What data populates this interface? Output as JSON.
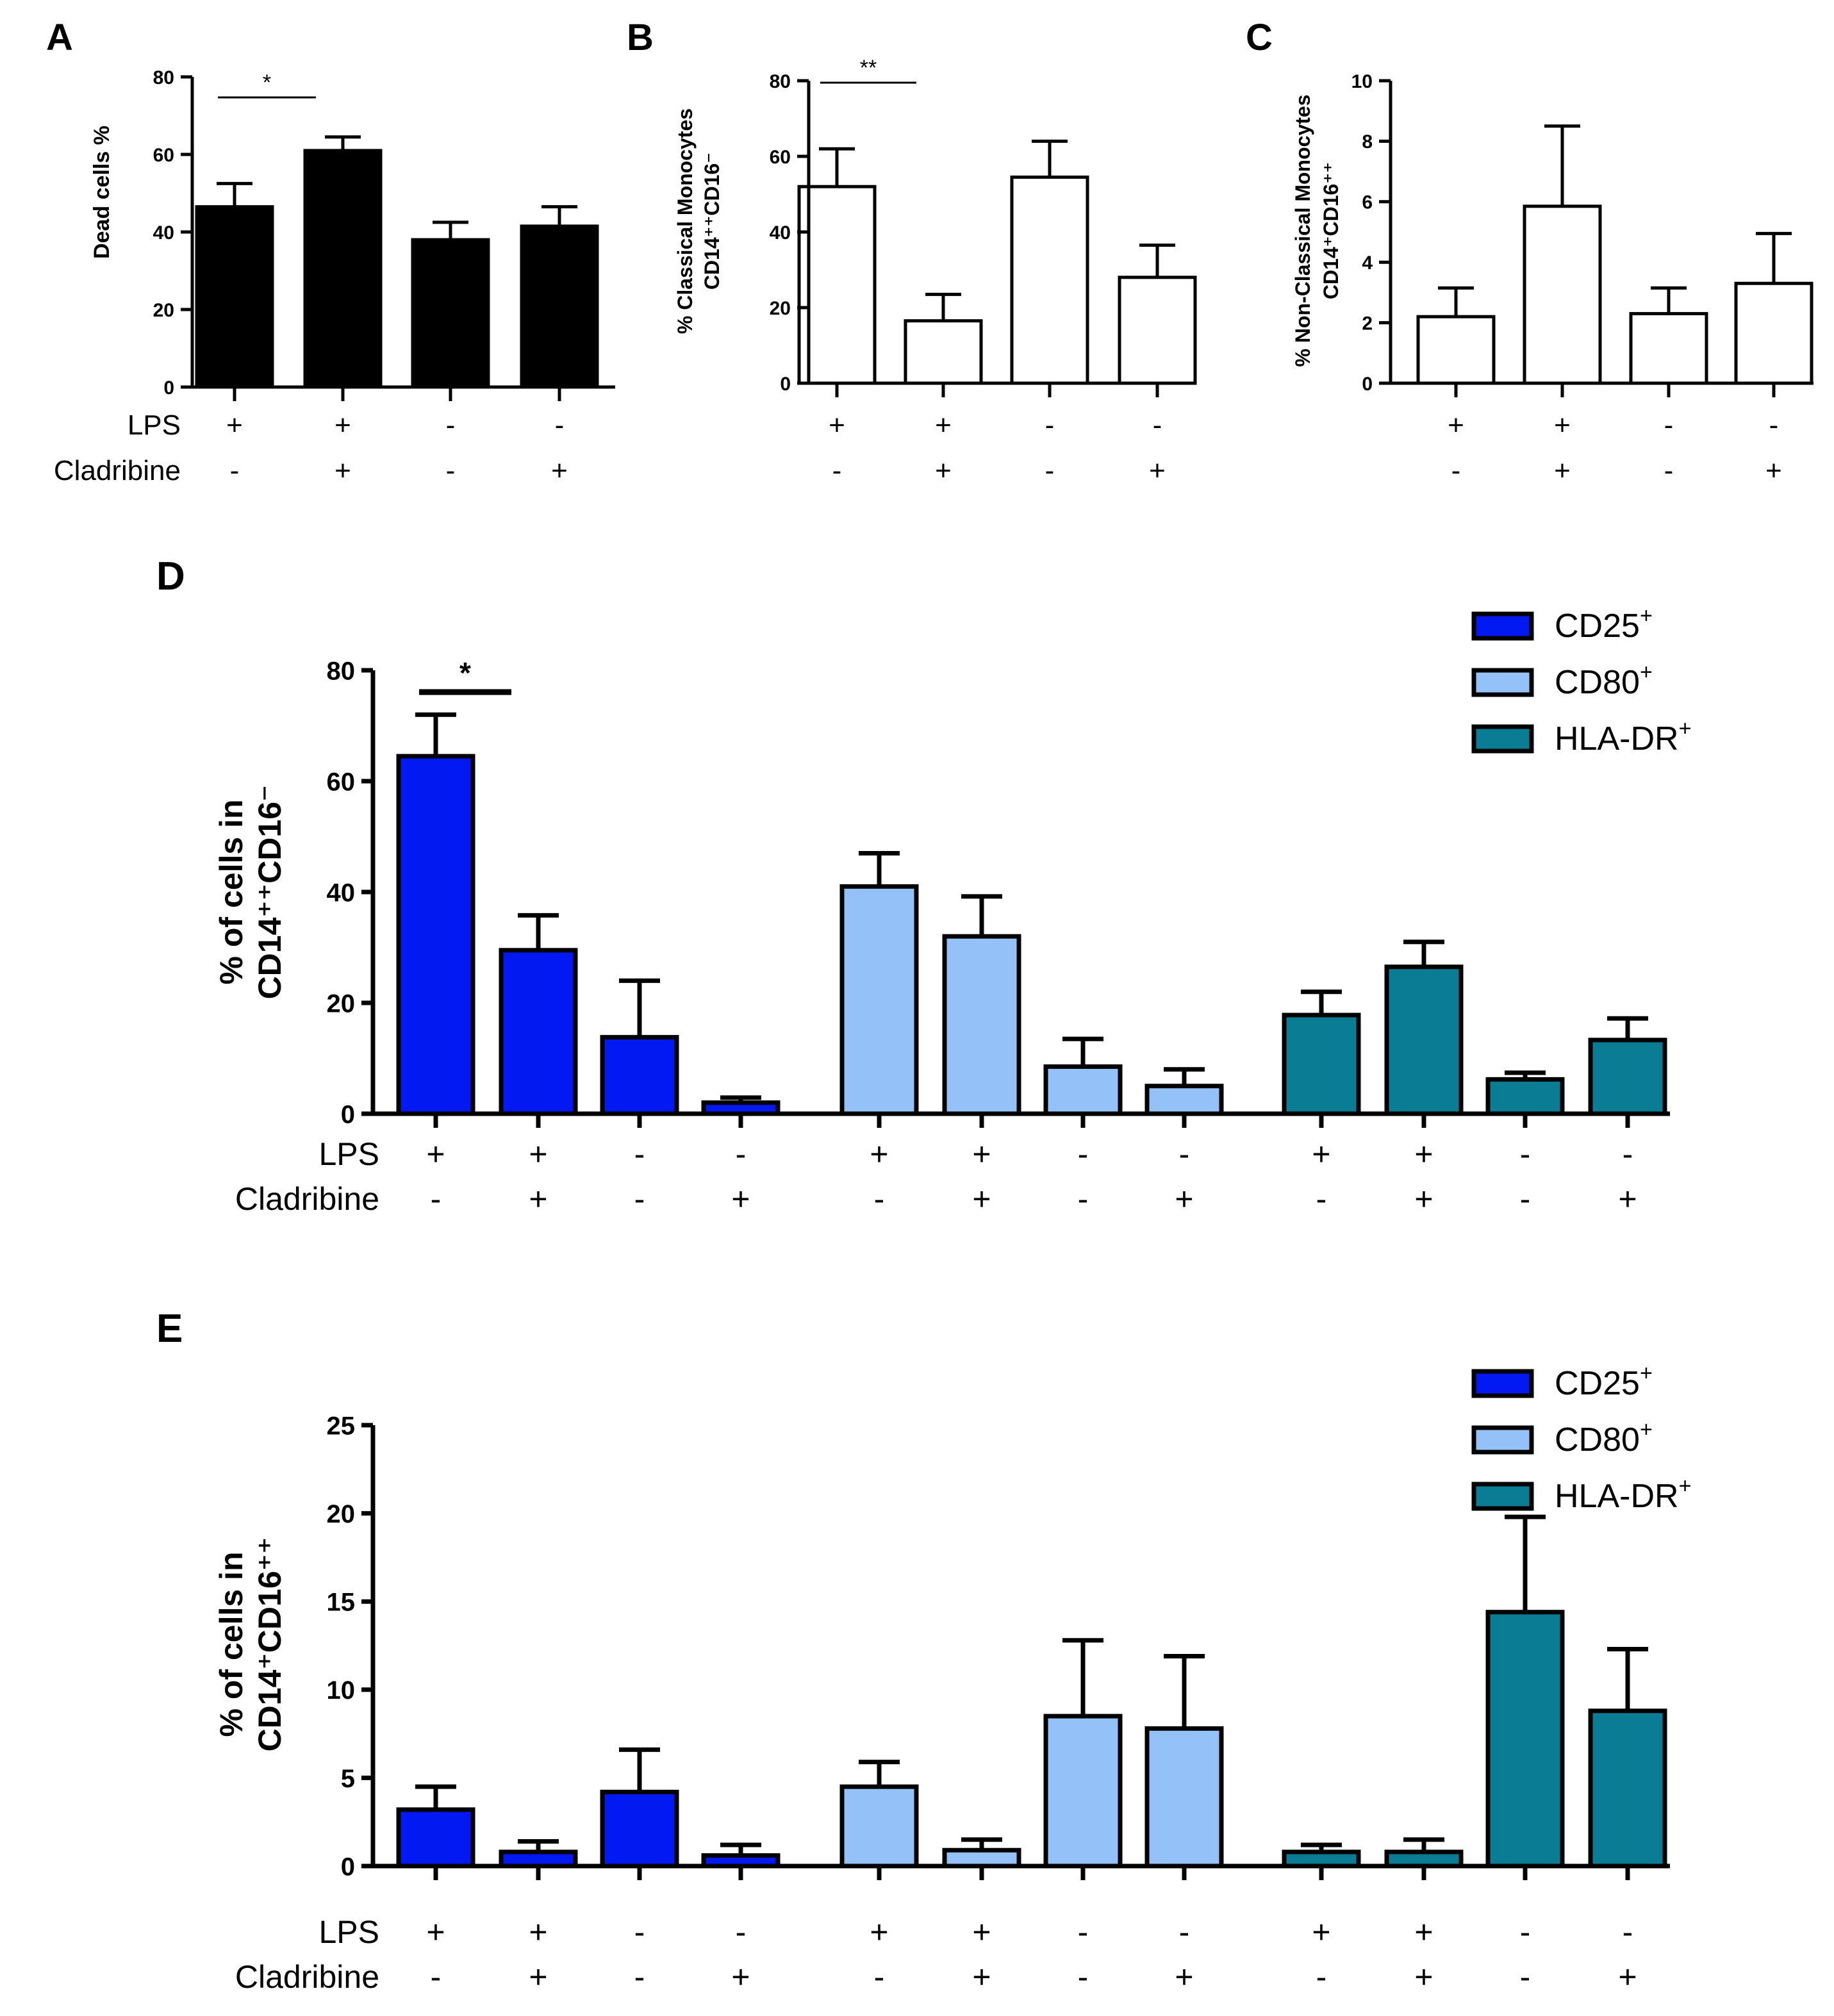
{
  "figure": {
    "treatment_labels": {
      "lps": "LPS",
      "cladribine": "Cladribine"
    },
    "legend_marker": "+"
  },
  "chart_data": [
    {
      "id": "A",
      "type": "bar",
      "panel_label": "A",
      "ylabel_lines": [
        "Dead cells %"
      ],
      "ylim": [
        0,
        80
      ],
      "yticks": [
        0,
        20,
        40,
        60,
        80
      ],
      "fill": "#000000",
      "grid": false,
      "categories": [
        "LPS+/Cladribine-",
        "LPS+/Cladribine+",
        "LPS-/Cladribine-",
        "LPS-/Cladribine+"
      ],
      "lps": [
        "+",
        "+",
        "-",
        "-"
      ],
      "cladribine": [
        "-",
        "+",
        "-",
        "+"
      ],
      "show_row_labels": true,
      "values": [
        46.5,
        61,
        38,
        41.5
      ],
      "errors": [
        6,
        3.5,
        4.5,
        5
      ],
      "significance": [
        {
          "from": 0,
          "to": 1,
          "label": "*"
        }
      ]
    },
    {
      "id": "B",
      "type": "bar",
      "panel_label": "B",
      "ylabel_lines": [
        "% Classical Monocytes",
        "CD14⁺⁺CD16⁻"
      ],
      "ylim": [
        0,
        80
      ],
      "yticks": [
        0,
        20,
        40,
        60,
        80
      ],
      "fill": "#ffffff",
      "grid": false,
      "categories": [
        "LPS+/Cladribine-",
        "LPS+/Cladribine+",
        "LPS-/Cladribine-",
        "LPS-/Cladribine+"
      ],
      "lps": [
        "+",
        "+",
        "-",
        "-"
      ],
      "cladribine": [
        "-",
        "+",
        "-",
        "+"
      ],
      "show_row_labels": false,
      "values": [
        52,
        16.5,
        54.5,
        28
      ],
      "errors": [
        10,
        7,
        9.5,
        8.5
      ],
      "significance": [
        {
          "from": 0,
          "to": 1,
          "label": "**"
        }
      ]
    },
    {
      "id": "C",
      "type": "bar",
      "panel_label": "C",
      "ylabel_lines": [
        "% Non-Classical Monocytes",
        "CD14⁺CD16⁺⁺"
      ],
      "ylim": [
        0,
        10
      ],
      "yticks": [
        0,
        2,
        4,
        6,
        8,
        10
      ],
      "fill": "#ffffff",
      "grid": false,
      "categories": [
        "LPS+/Cladribine-",
        "LPS+/Cladribine+",
        "LPS-/Cladribine-",
        "LPS-/Cladribine+"
      ],
      "lps": [
        "+",
        "+",
        "-",
        "-"
      ],
      "cladribine": [
        "-",
        "+",
        "-",
        "+"
      ],
      "show_row_labels": false,
      "values": [
        2.2,
        5.85,
        2.3,
        3.3
      ],
      "errors": [
        0.95,
        2.65,
        0.85,
        1.65
      ],
      "significance": []
    },
    {
      "id": "D",
      "type": "bar",
      "panel_label": "D",
      "ylabel_lines": [
        "% of cells in",
        "CD14⁺⁺CD16⁻"
      ],
      "ylim": [
        0,
        80
      ],
      "yticks": [
        0,
        20,
        40,
        60,
        80
      ],
      "grid": false,
      "legend_position": "top-right",
      "lps": [
        "+",
        "+",
        "-",
        "-"
      ],
      "cladribine": [
        "-",
        "+",
        "-",
        "+"
      ],
      "series": [
        {
          "name": "CD25",
          "sup": "+",
          "color": "#0219f2",
          "values": [
            64.5,
            29.5,
            13.8,
            2.0
          ],
          "errors": [
            7.5,
            6.3,
            10.2,
            0.9
          ]
        },
        {
          "name": "CD80",
          "sup": "+",
          "color": "#93c1f8",
          "values": [
            41,
            32,
            8.5,
            5.0
          ],
          "errors": [
            6,
            7.2,
            5,
            3
          ]
        },
        {
          "name": "HLA-DR",
          "sup": "+",
          "color": "#0a7c93",
          "values": [
            17.8,
            26.5,
            6.2,
            13.3
          ],
          "errors": [
            4.2,
            4.5,
            1.2,
            3.9
          ]
        }
      ],
      "significance": [
        {
          "from": 0,
          "to": 1,
          "label": "*"
        }
      ]
    },
    {
      "id": "E",
      "type": "bar",
      "panel_label": "E",
      "ylabel_lines": [
        "% of cells in",
        "CD14⁺CD16⁺⁺"
      ],
      "ylim": [
        0,
        25
      ],
      "yticks": [
        0,
        5,
        10,
        15,
        20,
        25
      ],
      "grid": false,
      "legend_position": "top-right",
      "lps": [
        "+",
        "+",
        "-",
        "-"
      ],
      "cladribine": [
        "-",
        "+",
        "-",
        "+"
      ],
      "series": [
        {
          "name": "CD25",
          "sup": "+",
          "color": "#0219f2",
          "values": [
            3.2,
            0.8,
            4.2,
            0.6
          ],
          "errors": [
            1.3,
            0.6,
            2.4,
            0.6
          ]
        },
        {
          "name": "CD80",
          "sup": "+",
          "color": "#93c1f8",
          "values": [
            4.5,
            0.9,
            8.5,
            7.8
          ],
          "errors": [
            1.4,
            0.6,
            4.3,
            4.1
          ]
        },
        {
          "name": "HLA-DR",
          "sup": "+",
          "color": "#0a7c93",
          "values": [
            0.8,
            0.8,
            14.4,
            8.8
          ],
          "errors": [
            0.4,
            0.7,
            5.4,
            3.5
          ]
        }
      ],
      "significance": []
    }
  ]
}
